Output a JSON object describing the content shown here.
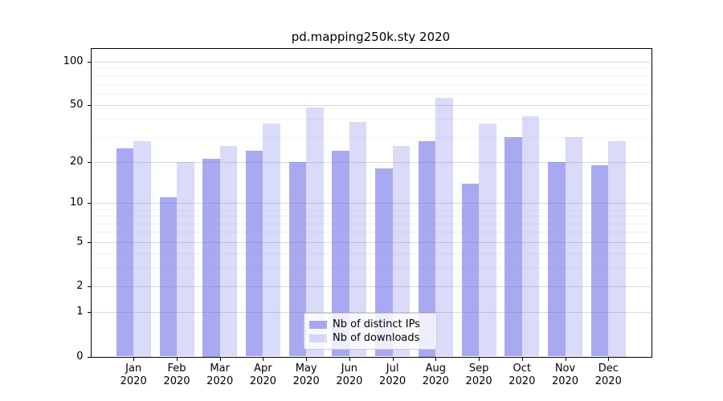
{
  "title": "pd.mapping250k.sty 2020",
  "chart_data": {
    "type": "bar",
    "categories": [
      "Jan",
      "Feb",
      "Mar",
      "Apr",
      "May",
      "Jun",
      "Jul",
      "Aug",
      "Sep",
      "Oct",
      "Nov",
      "Dec"
    ],
    "year_label": "2020",
    "series": [
      {
        "name": "Nb of distinct IPs",
        "color": "rgba(112,112,232,0.6)",
        "values": [
          25,
          11,
          21,
          24,
          20,
          24,
          18,
          28,
          14,
          30,
          20,
          19
        ]
      },
      {
        "name": "Nb of downloads",
        "color": "rgba(112,112,232,0.26)",
        "values": [
          28,
          20,
          26,
          37,
          48,
          38,
          26,
          56,
          37,
          42,
          30,
          28
        ]
      }
    ],
    "yscale": "symlog-log1p",
    "yticks": [
      0,
      1,
      2,
      5,
      10,
      20,
      50,
      100
    ],
    "yticks_minor": [
      3,
      4,
      6,
      7,
      8,
      9,
      30,
      40,
      60,
      70,
      80,
      90
    ],
    "ylim": [
      0,
      124
    ],
    "xlabel": "",
    "ylabel": "",
    "grid": true,
    "legend_position": "lower center",
    "bar_group_width": 0.8
  },
  "legend": {
    "items": [
      {
        "label": "Nb of distinct IPs"
      },
      {
        "label": "Nb of downloads"
      }
    ]
  }
}
